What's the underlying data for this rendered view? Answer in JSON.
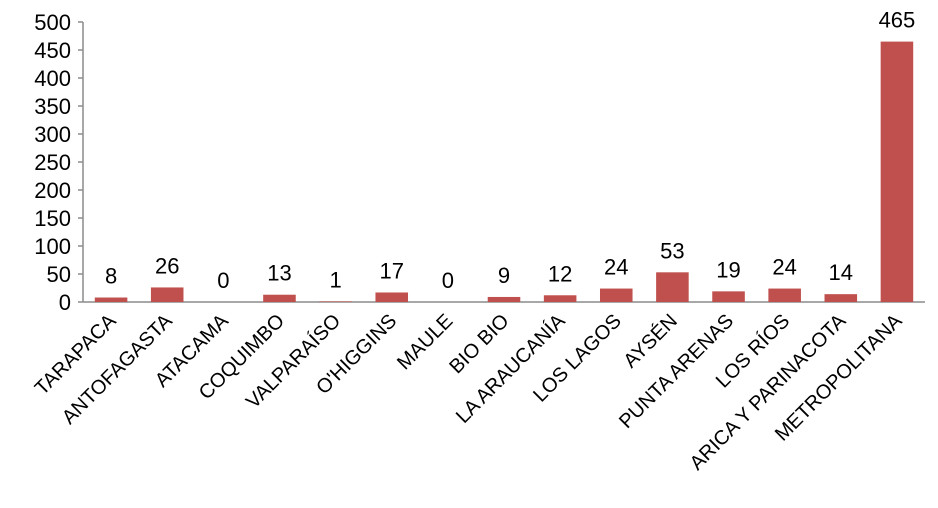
{
  "chart_data": {
    "type": "bar",
    "title": "",
    "xlabel": "",
    "ylabel": "",
    "ylim": [
      0,
      500
    ],
    "yticks": [
      0,
      50,
      100,
      150,
      200,
      250,
      300,
      350,
      400,
      450,
      500
    ],
    "grid": false,
    "legend": "none",
    "bar_color": "#c0504d",
    "categories": [
      "TARAPACA",
      "ANTOFAGASTA",
      "ATACAMA",
      "COQUIMBO",
      "VALPARAÍSO",
      "O'HIGGINS",
      "MAULE",
      "BIO BIO",
      "LA ARAUCANÍA",
      "LOS LAGOS",
      "AYSÉN",
      "PUNTA ARENAS",
      "LOS RÍOS",
      "ARICA Y PARINACOTA",
      "METROPOLITANA"
    ],
    "values": [
      8,
      26,
      0,
      13,
      1,
      17,
      0,
      9,
      12,
      24,
      53,
      19,
      24,
      14,
      465
    ]
  }
}
